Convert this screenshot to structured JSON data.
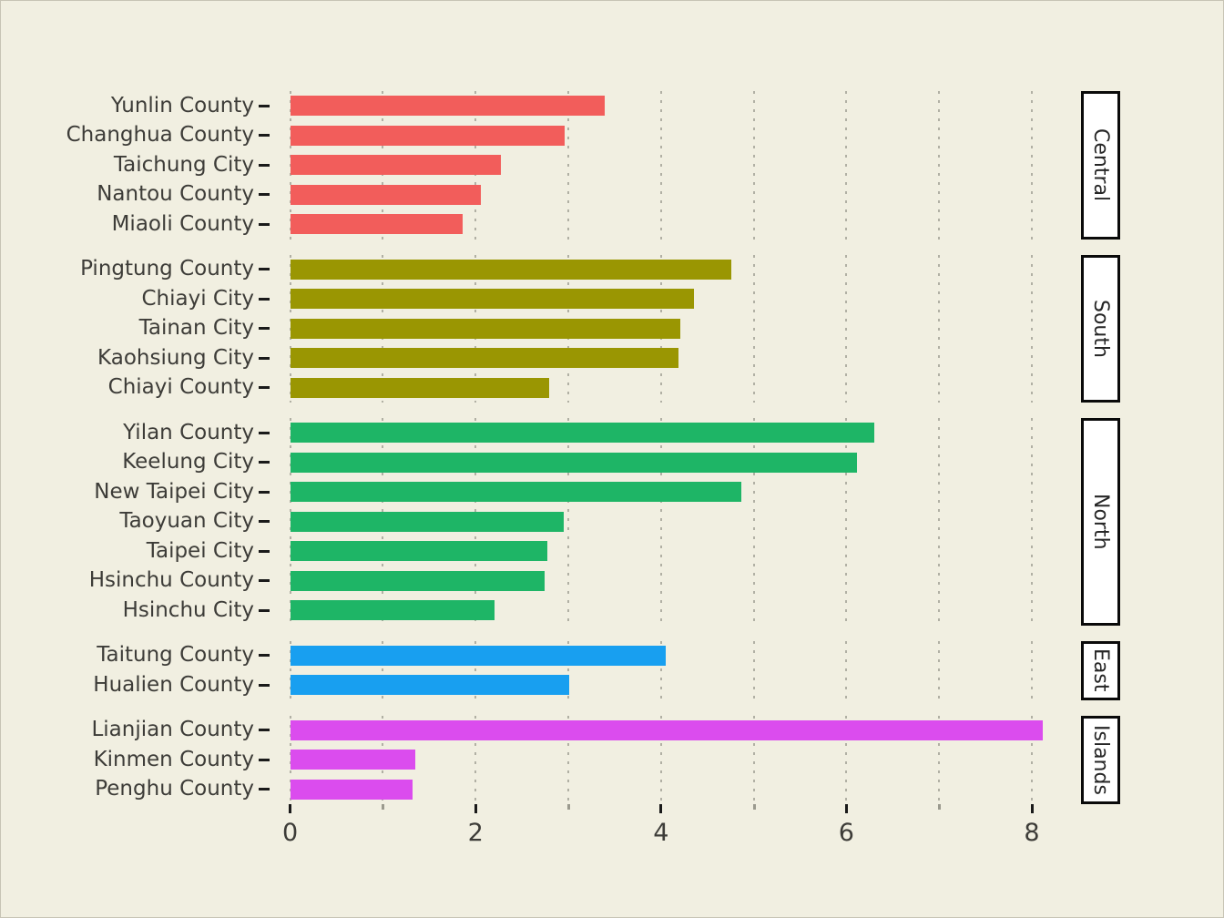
{
  "chart_data": {
    "type": "bar",
    "orientation": "horizontal",
    "title": "",
    "xlabel": "",
    "ylabel": "",
    "x_ticks": [
      "0",
      "2",
      "4",
      "6",
      "8"
    ],
    "x_tick_values": [
      0,
      2,
      4,
      6,
      8
    ],
    "x_minor_tick_values": [
      1,
      3,
      5,
      7
    ],
    "xlim": [
      0,
      8.5
    ],
    "grid": "vertical dotted gridlines every 1 unit",
    "legend_position": "none",
    "facet_strip_side": "right",
    "facets": [
      {
        "name": "Central",
        "color": "#F25D5B",
        "categories": [
          "Yunlin County",
          "Changhua County",
          "Taichung City",
          "Nantou County",
          "Miaoli County"
        ],
        "values": [
          3.39,
          2.96,
          2.27,
          2.06,
          1.86
        ]
      },
      {
        "name": "South",
        "color": "#9A9602",
        "categories": [
          "Pingtung County",
          "Chiayi City",
          "Tainan City",
          "Kaohsiung City",
          "Chiayi County"
        ],
        "values": [
          4.76,
          4.36,
          4.21,
          4.19,
          2.79
        ]
      },
      {
        "name": "North",
        "color": "#1EB566",
        "categories": [
          "Yilan County",
          "Keelung City",
          "New Taipei City",
          "Taoyuan City",
          "Taipei City",
          "Hsinchu County",
          "Hsinchu City"
        ],
        "values": [
          6.3,
          6.11,
          4.87,
          2.95,
          2.77,
          2.74,
          2.2
        ]
      },
      {
        "name": "East",
        "color": "#189FF0",
        "categories": [
          "Taitung County",
          "Hualien County"
        ],
        "values": [
          4.05,
          3.01
        ]
      },
      {
        "name": "Islands",
        "color": "#DB4CEE",
        "categories": [
          "Lianjian County",
          "Kinmen County",
          "Penghu County"
        ],
        "values": [
          8.12,
          1.35,
          1.32
        ]
      }
    ]
  },
  "colors": {
    "background": "#F1EFE1",
    "gridline": "#B1B0A4",
    "axis_text": "#3D3C38",
    "tick": "#1A1A1A",
    "minor_tick": "#9B9A8E",
    "strip_background": "#FFFFFF",
    "strip_border": "#0A0A0A",
    "strip_text": "#262626"
  }
}
